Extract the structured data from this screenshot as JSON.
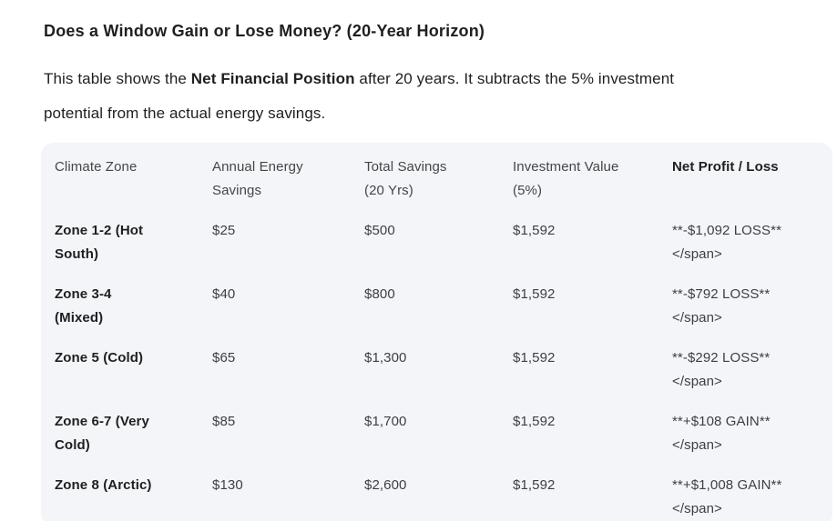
{
  "page": {
    "title": "Does a Window Gain or Lose Money? (20-Year Horizon)",
    "intro": {
      "line1_prefix": "This table shows the ",
      "line1_bold": "Net Financial Position",
      "line1_suffix": " after 20 years. It subtracts the 5% investment",
      "line2": "potential from the actual energy savings."
    }
  },
  "table": {
    "columns": [
      [
        "Climate Zone"
      ],
      [
        "Annual Energy",
        "Savings"
      ],
      [
        "Total Savings",
        "(20 Yrs)"
      ],
      [
        "Investment Value",
        "(5%)"
      ],
      [
        "Net Profit / Loss"
      ]
    ],
    "rows": [
      [
        [
          "Zone 1-2 (Hot",
          "South)"
        ],
        [
          "$25"
        ],
        [
          "$500"
        ],
        [
          "$1,592"
        ],
        [
          "**-$1,092 LOSS**",
          "</span>"
        ]
      ],
      [
        [
          "Zone 3-4",
          "(Mixed)"
        ],
        [
          "$40"
        ],
        [
          "$800"
        ],
        [
          "$1,592"
        ],
        [
          "**-$792 LOSS**",
          "</span>"
        ]
      ],
      [
        [
          "Zone 5 (Cold)"
        ],
        [
          "$65"
        ],
        [
          "$1,300"
        ],
        [
          "$1,592"
        ],
        [
          "**-$292 LOSS**",
          "</span>"
        ]
      ],
      [
        [
          "Zone 6-7 (Very",
          "Cold)"
        ],
        [
          "$85"
        ],
        [
          "$1,700"
        ],
        [
          "$1,592"
        ],
        [
          "**+$108 GAIN**",
          "</span>"
        ]
      ],
      [
        [
          "Zone 8 (Arctic)"
        ],
        [
          "$130"
        ],
        [
          "$2,600"
        ],
        [
          "$1,592"
        ],
        [
          "**+$1,008 GAIN**",
          "</span>"
        ]
      ]
    ],
    "column_keys": [
      "climate-zone",
      "annual-energy-savings",
      "total-savings-20yrs",
      "investment-value-5pct",
      "net-profit-loss"
    ]
  },
  "colors": {
    "table_background": "#f3f5f9",
    "heading_text": "#1f1f1f",
    "header_gray_text": "#444746",
    "cell_text": "#3c4043"
  }
}
